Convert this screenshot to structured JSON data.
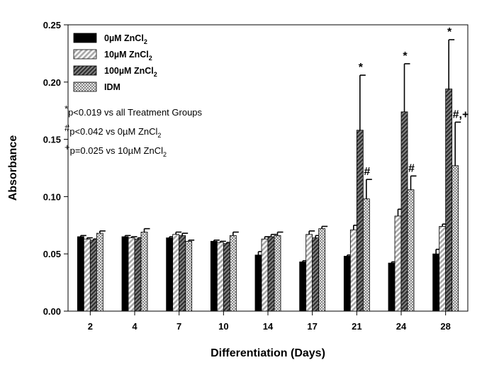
{
  "chart_data": {
    "type": "bar",
    "xlabel": "Differentiation (Days)",
    "ylabel": "Absorbance",
    "ylim": [
      0,
      0.25
    ],
    "yticks": [
      "0.00",
      "0.05",
      "0.10",
      "0.15",
      "0.20",
      "0.25"
    ],
    "categories": [
      "2",
      "4",
      "7",
      "10",
      "14",
      "17",
      "21",
      "24",
      "28"
    ],
    "legend_position": "top-left",
    "series": [
      {
        "name_main": "0µM ZnCl",
        "name_sub": "2",
        "pattern": "solid-black",
        "color": "#000000",
        "values": [
          0.065,
          0.065,
          0.064,
          0.061,
          0.049,
          0.043,
          0.048,
          0.042,
          0.05
        ],
        "errors": [
          0.001,
          0.001,
          0.001,
          0.001,
          0.003,
          0.001,
          0.001,
          0.001,
          0.004
        ]
      },
      {
        "name_main": "10µM ZnCl",
        "name_sub": "2",
        "pattern": "light-diagonal",
        "color": "#bdbdbd",
        "values": [
          0.063,
          0.064,
          0.067,
          0.06,
          0.063,
          0.067,
          0.071,
          0.083,
          0.074
        ],
        "errors": [
          0.001,
          0.001,
          0.002,
          0.001,
          0.002,
          0.003,
          0.004,
          0.006,
          0.002
        ]
      },
      {
        "name_main": "100µM ZnCl",
        "name_sub": "2",
        "pattern": "dark-diagonal",
        "color": "#555555",
        "values": [
          0.062,
          0.063,
          0.066,
          0.059,
          0.065,
          0.064,
          0.158,
          0.174,
          0.194
        ],
        "errors": [
          0.001,
          0.001,
          0.002,
          0.001,
          0.002,
          0.002,
          0.048,
          0.042,
          0.043
        ]
      },
      {
        "name_main": "IDM",
        "name_sub": "",
        "pattern": "crosshatch",
        "color": "#e6e6e6",
        "values": [
          0.068,
          0.069,
          0.061,
          0.066,
          0.066,
          0.072,
          0.098,
          0.106,
          0.127
        ],
        "errors": [
          0.002,
          0.003,
          0.001,
          0.003,
          0.003,
          0.002,
          0.017,
          0.012,
          0.038
        ]
      }
    ],
    "notes": [
      {
        "sym": "*",
        "text": "p<0.019 vs all Treatment Groups",
        "sub": ""
      },
      {
        "sym": "#",
        "text": "p<0.042 vs 0µM ZnCl",
        "sub": "2"
      },
      {
        "sym": "+",
        "text": "p=0.025 vs 10µM ZnCl",
        "sub": "2"
      }
    ],
    "annotations": [
      {
        "category": "21",
        "series": 2,
        "text": "*"
      },
      {
        "category": "21",
        "series": 3,
        "text": "#"
      },
      {
        "category": "24",
        "series": 2,
        "text": "*"
      },
      {
        "category": "24",
        "series": 3,
        "text": "#"
      },
      {
        "category": "28",
        "series": 2,
        "text": "*"
      },
      {
        "category": "28",
        "series": 3,
        "text": "#,+"
      }
    ]
  }
}
